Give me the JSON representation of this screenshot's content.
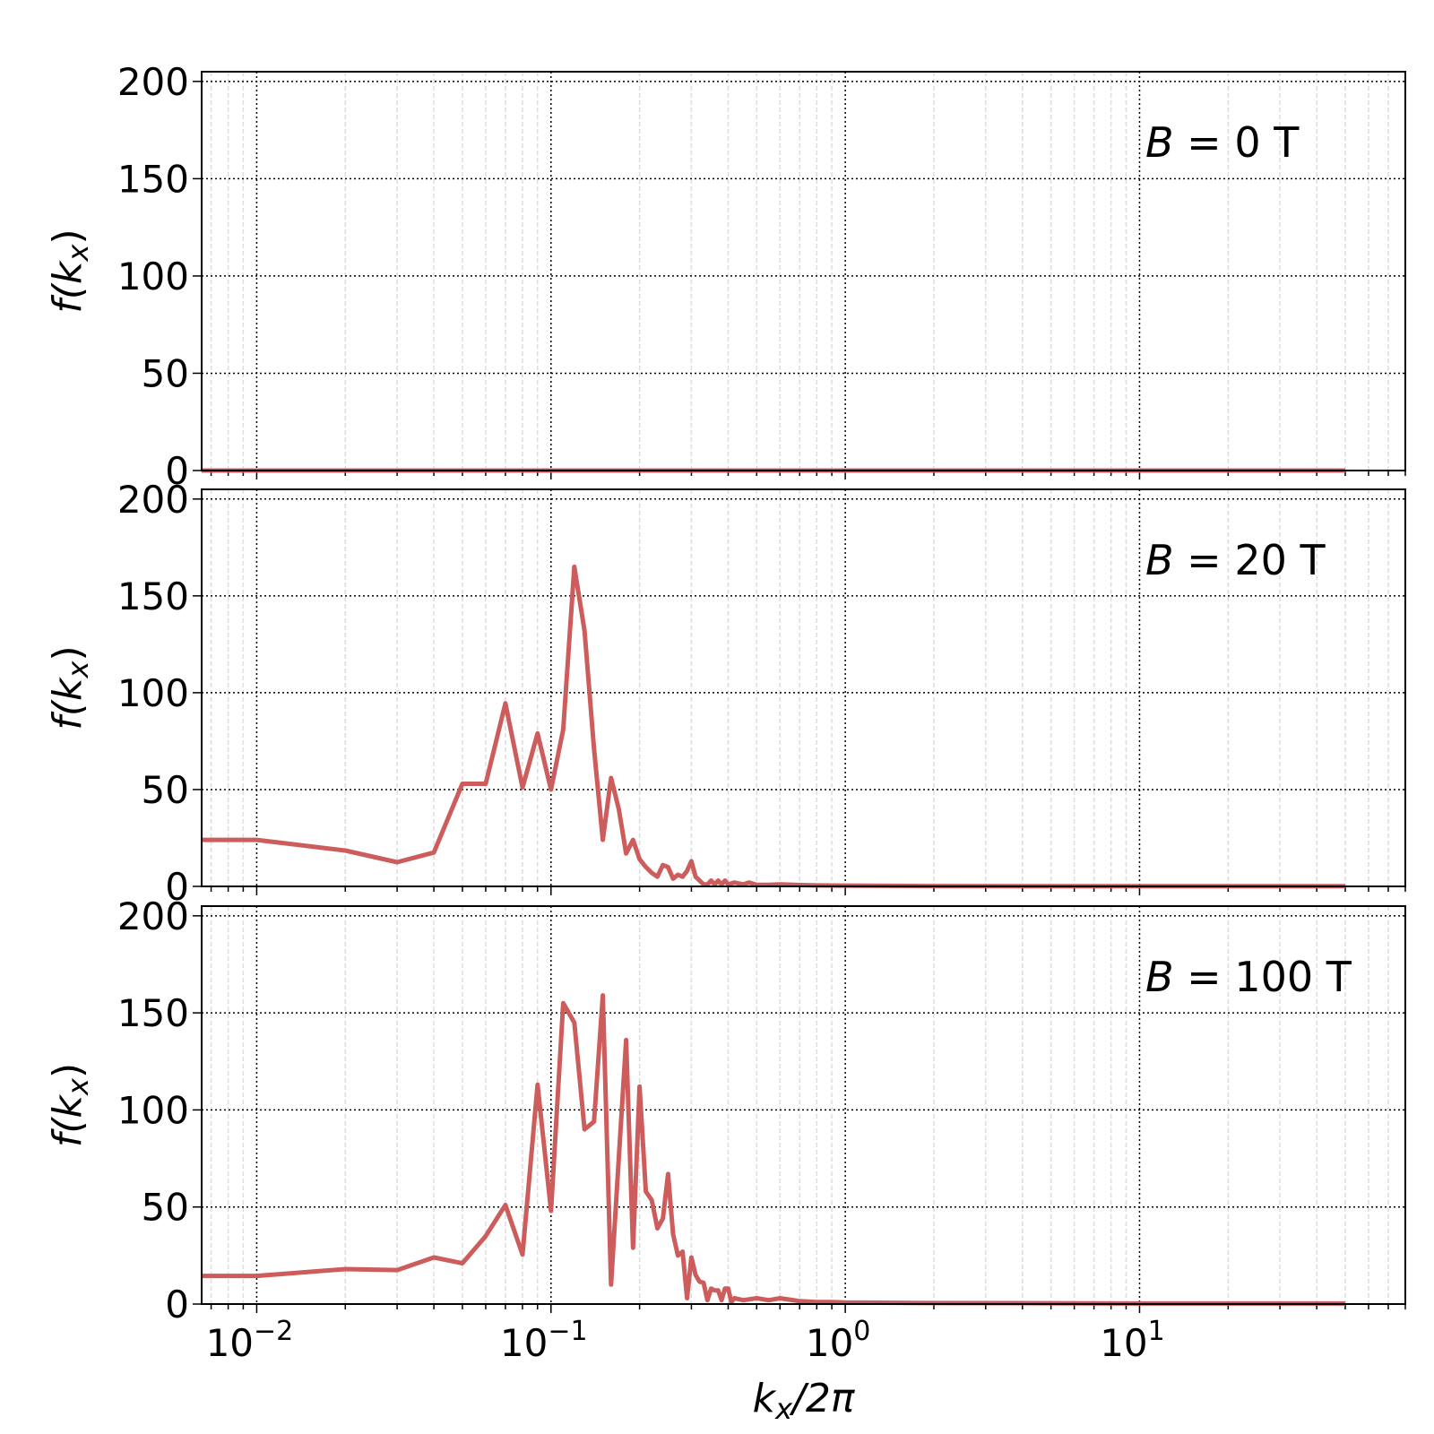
{
  "chart_data": [
    {
      "type": "line",
      "annotation": "B = 0 T",
      "ylabel": "f(k_x)",
      "xlabel": "",
      "xscale": "log",
      "xlim": [
        0.0065,
        80
      ],
      "ylim": [
        0,
        205
      ],
      "yticks": [
        0,
        50,
        100,
        150,
        200
      ],
      "xticks": [
        "10^-2",
        "10^-1",
        "10^0",
        "10^1"
      ],
      "grid": true,
      "line_color": "#cd5c5c",
      "points": [
        [
          0.01,
          0
        ],
        [
          0.1,
          0
        ],
        [
          1,
          0
        ],
        [
          10,
          0
        ],
        [
          50,
          0
        ]
      ]
    },
    {
      "type": "line",
      "annotation": "B = 20 T",
      "ylabel": "f(k_x)",
      "xlabel": "",
      "xscale": "log",
      "xlim": [
        0.0065,
        80
      ],
      "ylim": [
        0,
        205
      ],
      "yticks": [
        0,
        50,
        100,
        150,
        200
      ],
      "xticks": [
        "10^-2",
        "10^-1",
        "10^0",
        "10^1"
      ],
      "grid": true,
      "line_color": "#cd5c5c",
      "points": [
        [
          0.01,
          24
        ],
        [
          0.02,
          18.5
        ],
        [
          0.03,
          12.5
        ],
        [
          0.04,
          17.5
        ],
        [
          0.05,
          53
        ],
        [
          0.06,
          53
        ],
        [
          0.07,
          94.5
        ],
        [
          0.08,
          51
        ],
        [
          0.09,
          79
        ],
        [
          0.1,
          50
        ],
        [
          0.11,
          81
        ],
        [
          0.12,
          165
        ],
        [
          0.13,
          132
        ],
        [
          0.14,
          71
        ],
        [
          0.15,
          24
        ],
        [
          0.16,
          56
        ],
        [
          0.17,
          40
        ],
        [
          0.18,
          17
        ],
        [
          0.19,
          24
        ],
        [
          0.2,
          14
        ],
        [
          0.21,
          10
        ],
        [
          0.22,
          7
        ],
        [
          0.23,
          5
        ],
        [
          0.24,
          11
        ],
        [
          0.25,
          10
        ],
        [
          0.26,
          4
        ],
        [
          0.27,
          6
        ],
        [
          0.28,
          5
        ],
        [
          0.29,
          8
        ],
        [
          0.3,
          13
        ],
        [
          0.31,
          5
        ],
        [
          0.32,
          3
        ],
        [
          0.33,
          1
        ],
        [
          0.34,
          1
        ],
        [
          0.35,
          3
        ],
        [
          0.36,
          1
        ],
        [
          0.37,
          3
        ],
        [
          0.38,
          1
        ],
        [
          0.39,
          3
        ],
        [
          0.4,
          1
        ],
        [
          0.42,
          2
        ],
        [
          0.45,
          1
        ],
        [
          0.47,
          2
        ],
        [
          0.5,
          0.8
        ],
        [
          0.55,
          0.8
        ],
        [
          0.6,
          1
        ],
        [
          0.7,
          0.7
        ],
        [
          0.8,
          0.5
        ],
        [
          1,
          0.4
        ],
        [
          2,
          0.2
        ],
        [
          5,
          0.1
        ],
        [
          10,
          0.1
        ],
        [
          50,
          0.1
        ]
      ]
    },
    {
      "type": "line",
      "annotation": "B = 100 T",
      "ylabel": "f(k_x)",
      "xlabel": "k_x/2π",
      "xscale": "log",
      "xlim": [
        0.0065,
        80
      ],
      "ylim": [
        0,
        205
      ],
      "yticks": [
        0,
        50,
        100,
        150,
        200
      ],
      "xticks": [
        "10^-2",
        "10^-1",
        "10^0",
        "10^1"
      ],
      "grid": true,
      "line_color": "#cd5c5c",
      "points": [
        [
          0.01,
          14.5
        ],
        [
          0.02,
          18
        ],
        [
          0.03,
          17.5
        ],
        [
          0.04,
          24
        ],
        [
          0.05,
          21
        ],
        [
          0.06,
          35
        ],
        [
          0.07,
          51
        ],
        [
          0.08,
          25.5
        ],
        [
          0.09,
          113
        ],
        [
          0.1,
          48
        ],
        [
          0.11,
          155
        ],
        [
          0.12,
          145
        ],
        [
          0.13,
          90
        ],
        [
          0.14,
          94
        ],
        [
          0.15,
          159
        ],
        [
          0.16,
          10
        ],
        [
          0.17,
          75
        ],
        [
          0.18,
          136
        ],
        [
          0.19,
          29
        ],
        [
          0.2,
          112
        ],
        [
          0.21,
          58
        ],
        [
          0.22,
          53.5
        ],
        [
          0.23,
          39
        ],
        [
          0.24,
          44
        ],
        [
          0.25,
          67
        ],
        [
          0.26,
          36
        ],
        [
          0.27,
          25
        ],
        [
          0.28,
          27
        ],
        [
          0.29,
          3
        ],
        [
          0.3,
          24
        ],
        [
          0.31,
          15
        ],
        [
          0.32,
          11.5
        ],
        [
          0.33,
          11
        ],
        [
          0.34,
          2
        ],
        [
          0.35,
          8
        ],
        [
          0.36,
          7
        ],
        [
          0.37,
          7
        ],
        [
          0.38,
          2
        ],
        [
          0.39,
          8
        ],
        [
          0.4,
          8
        ],
        [
          0.41,
          1
        ],
        [
          0.42,
          3
        ],
        [
          0.45,
          2
        ],
        [
          0.5,
          3
        ],
        [
          0.55,
          2
        ],
        [
          0.6,
          3
        ],
        [
          0.7,
          1.5
        ],
        [
          0.8,
          1
        ],
        [
          0.9,
          1
        ],
        [
          1,
          0.8
        ],
        [
          2,
          0.5
        ],
        [
          5,
          0.4
        ],
        [
          10,
          0.3
        ],
        [
          20,
          0.3
        ],
        [
          50,
          0.3
        ]
      ]
    }
  ],
  "labels": {
    "ylabel_base": "f(",
    "ylabel_var": "k",
    "ylabel_sub": "x",
    "ylabel_close": ")",
    "xlabel_var": "k",
    "xlabel_sub": "x",
    "xlabel_rest": "/2π",
    "ann_prefix": "B",
    "ann_values": [
      "= 0 T",
      "= 20 T",
      "= 100 T"
    ],
    "xtick_base": "10",
    "xtick_exps": [
      "−2",
      "−1",
      "0",
      "1"
    ],
    "yticks": [
      "0",
      "50",
      "100",
      "150",
      "200"
    ]
  }
}
